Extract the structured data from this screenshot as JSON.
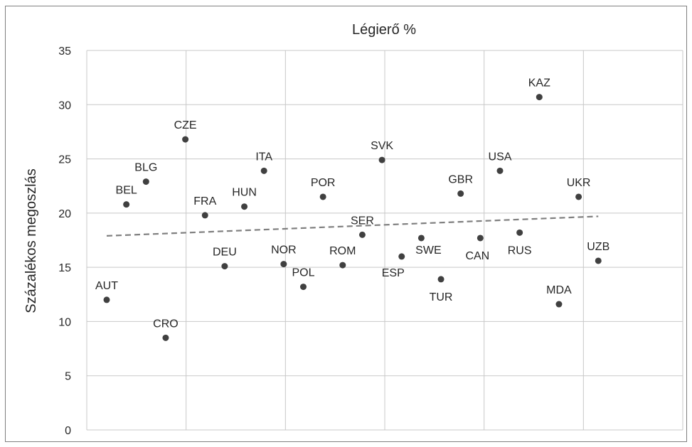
{
  "chart_data": {
    "type": "scatter",
    "title": "Légierő %",
    "xlabel": "",
    "ylabel": "Százalékos megoszlás",
    "ylim": [
      0,
      35
    ],
    "yticks": [
      0,
      5,
      10,
      15,
      20,
      25,
      30,
      35
    ],
    "x_gridlines": 7,
    "grid": true,
    "trendline": {
      "style": "dashed",
      "start": 17.9,
      "end": 19.7
    },
    "points": [
      {
        "label": "AUT",
        "x": 1,
        "y": 12.0
      },
      {
        "label": "BEL",
        "x": 2,
        "y": 20.8
      },
      {
        "label": "BLG",
        "x": 3,
        "y": 22.9
      },
      {
        "label": "CRO",
        "x": 4,
        "y": 8.5
      },
      {
        "label": "CZE",
        "x": 5,
        "y": 26.8
      },
      {
        "label": "FRA",
        "x": 6,
        "y": 19.8
      },
      {
        "label": "DEU",
        "x": 7,
        "y": 15.1
      },
      {
        "label": "HUN",
        "x": 8,
        "y": 20.6
      },
      {
        "label": "ITA",
        "x": 9,
        "y": 23.9
      },
      {
        "label": "NOR",
        "x": 10,
        "y": 15.3
      },
      {
        "label": "POL",
        "x": 11,
        "y": 13.2
      },
      {
        "label": "POR",
        "x": 12,
        "y": 21.5
      },
      {
        "label": "ROM",
        "x": 13,
        "y": 15.2
      },
      {
        "label": "SER",
        "x": 14,
        "y": 18.0
      },
      {
        "label": "SVK",
        "x": 15,
        "y": 24.9
      },
      {
        "label": "ESP",
        "x": 16,
        "y": 16.0
      },
      {
        "label": "SWE",
        "x": 17,
        "y": 17.7
      },
      {
        "label": "TUR",
        "x": 18,
        "y": 13.9
      },
      {
        "label": "GBR",
        "x": 19,
        "y": 21.8
      },
      {
        "label": "CAN",
        "x": 20,
        "y": 17.7
      },
      {
        "label": "USA",
        "x": 21,
        "y": 23.9
      },
      {
        "label": "RUS",
        "x": 22,
        "y": 18.2
      },
      {
        "label": "KAZ",
        "x": 23,
        "y": 30.7
      },
      {
        "label": "MDA",
        "x": 24,
        "y": 11.6
      },
      {
        "label": "UKR",
        "x": 25,
        "y": 21.5
      },
      {
        "label": "UZB",
        "x": 26,
        "y": 15.6
      }
    ],
    "colors": {
      "point": "#404040",
      "grid": "#c8c8c8",
      "trend": "#7f7f7f",
      "text": "#262626"
    }
  }
}
